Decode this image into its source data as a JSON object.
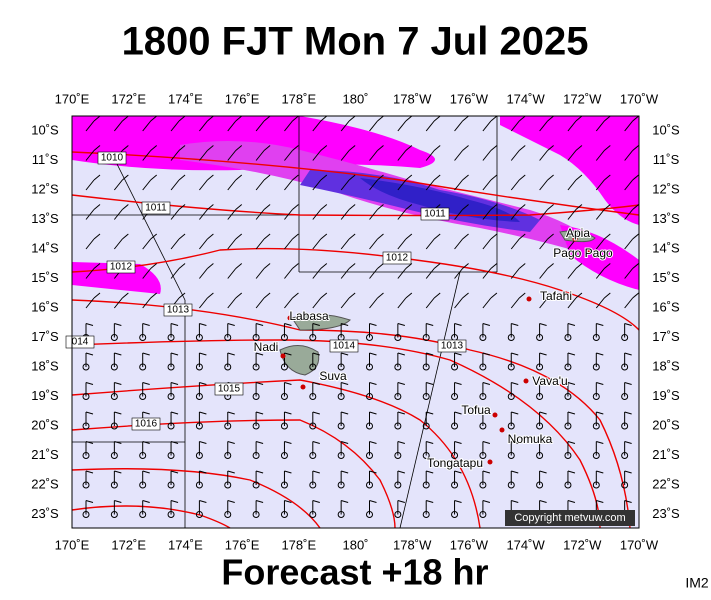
{
  "header": {
    "title": "1800 FJT Mon 7 Jul 2025"
  },
  "footer": {
    "caption": "Forecast +18 hr",
    "code": "IM2"
  },
  "map": {
    "lon_labels": [
      "170˚E",
      "172˚E",
      "174˚E",
      "176˚E",
      "178˚E",
      "180˚",
      "178˚W",
      "176˚W",
      "174˚W",
      "172˚W",
      "170˚W"
    ],
    "lat_labels": [
      "10˚S",
      "11˚S",
      "12˚S",
      "13˚S",
      "14˚S",
      "15˚S",
      "16˚S",
      "17˚S",
      "18˚S",
      "19˚S",
      "20˚S",
      "21˚S",
      "22˚S",
      "23˚S"
    ],
    "places": [
      "Labasa",
      "Nadi",
      "Suva",
      "Apia",
      "Pago Pago",
      "Tafahi",
      "Vava'u",
      "Tofua",
      "Nomuka",
      "Tongatapu"
    ],
    "isobar_labels": [
      "1010",
      "1011",
      "1012",
      "1013",
      "014",
      "1015",
      "1016",
      "1011",
      "1012",
      "1014",
      "1013"
    ],
    "copyright": "Copyright metvuw.com"
  }
}
